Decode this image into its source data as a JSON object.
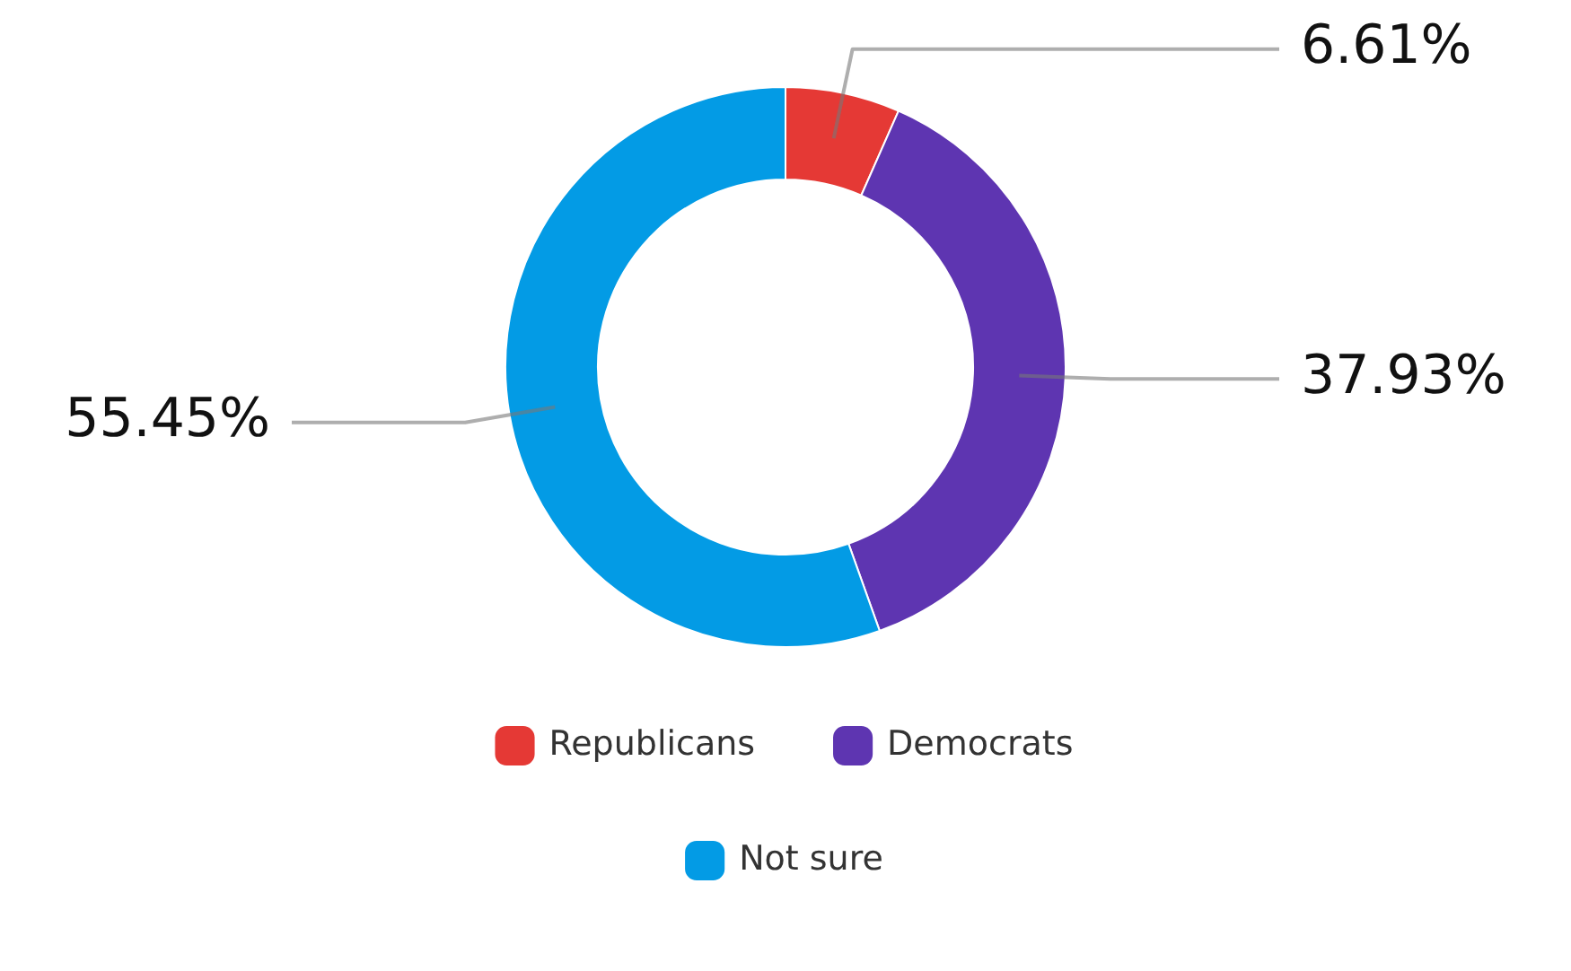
{
  "chart_data": {
    "type": "donut",
    "categories": [
      "Republicans",
      "Democrats",
      "Not sure"
    ],
    "values": [
      6.61,
      37.93,
      55.45
    ],
    "colors": [
      "#e53935",
      "#5e35b1",
      "#039be5"
    ],
    "value_labels": [
      "6.61%",
      "37.93%",
      "55.45%"
    ],
    "legend": "bottom"
  }
}
